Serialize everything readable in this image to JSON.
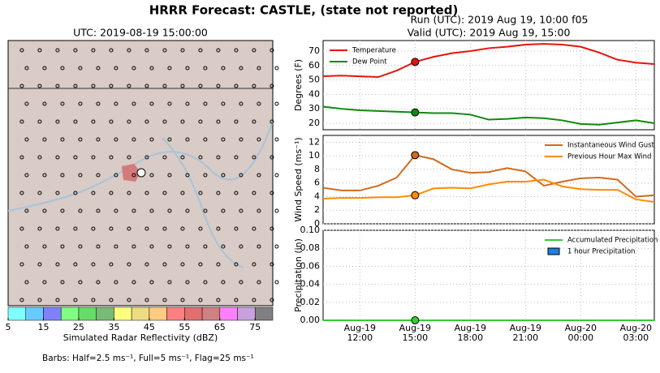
{
  "title": "HRRR Forecast: CASTLE, (state not reported)",
  "run": "Run (UTC): 2019 Aug 19, 10:00 f05",
  "valid": "Valid (UTC): 2019 Aug 19, 15:00",
  "footnote": "Barbs: Half=2.5 ms⁻¹, Full=5 ms⁻¹, Flag=25 ms⁻¹",
  "chart_data": [
    {
      "type": "colorbar",
      "title": "UTC: 2019-08-19 15:00:00",
      "label": "Simulated Radar Reflectivity (dBZ)",
      "colors": [
        "#80ffff",
        "#66ccff",
        "#8080ff",
        "#80ff80",
        "#66dd66",
        "#77bb77",
        "#ffff80",
        "#eedd80",
        "#ffcc80",
        "#ff8080",
        "#e07070",
        "#d08080",
        "#ff80ff",
        "#c8a0e0",
        "#808080"
      ],
      "xlim": [
        5,
        80
      ],
      "xticks": [
        5,
        15,
        25,
        35,
        45,
        55,
        65,
        75
      ]
    },
    {
      "type": "line",
      "ylabel": "Degrees (F)",
      "legend": "upper left",
      "grid": true,
      "x": [
        "08-19 10:00",
        "08-19 11:00",
        "08-19 12:00",
        "08-19 13:00",
        "08-19 14:00",
        "08-19 15:00",
        "08-19 16:00",
        "08-19 17:00",
        "08-19 18:00",
        "08-19 19:00",
        "08-19 20:00",
        "08-19 21:00",
        "08-19 22:00",
        "08-19 23:00",
        "08-20 00:00",
        "08-20 01:00",
        "08-20 02:00",
        "08-20 03:00",
        "08-20 04:00"
      ],
      "xlim": [
        "08-19 10:00",
        "08-20 04:00"
      ],
      "highlight_x": "08-19 15:00",
      "ylim": [
        15.5,
        77.3
      ],
      "yticks": [
        20,
        30,
        40,
        50,
        60,
        70
      ],
      "series": [
        {
          "name": "Temperature",
          "color": "#e8120c",
          "style": "line",
          "values": [
            52.6,
            53,
            52.5,
            52,
            56.5,
            62.5,
            66,
            68.5,
            70,
            72,
            73,
            74.5,
            75,
            74.5,
            73,
            69,
            64,
            62,
            61
          ]
        },
        {
          "name": "Dew Point",
          "color": "#0d8a0d",
          "style": "line",
          "values": [
            31.5,
            30,
            29,
            28.5,
            28,
            27.5,
            27,
            27,
            26,
            22.5,
            23,
            24,
            23.5,
            22,
            19.5,
            19,
            20.5,
            22,
            20
          ]
        }
      ]
    },
    {
      "type": "line",
      "ylabel": "Wind Speed (ms⁻¹)",
      "legend": "upper right",
      "grid": true,
      "x": [
        "08-19 10:00",
        "08-19 11:00",
        "08-19 12:00",
        "08-19 13:00",
        "08-19 14:00",
        "08-19 15:00",
        "08-19 16:00",
        "08-19 17:00",
        "08-19 18:00",
        "08-19 19:00",
        "08-19 20:00",
        "08-19 21:00",
        "08-19 22:00",
        "08-19 23:00",
        "08-20 00:00",
        "08-20 01:00",
        "08-20 02:00",
        "08-20 03:00",
        "08-20 04:00"
      ],
      "xlim": [
        "08-19 10:00",
        "08-20 04:00"
      ],
      "highlight_x": "08-19 15:00",
      "ylim": [
        0,
        13
      ],
      "yticks": [
        0,
        2,
        4,
        6,
        8,
        10,
        12
      ],
      "series": [
        {
          "name": "Instantaneous Wind Gust",
          "color": "#d2691e",
          "style": "line",
          "values": [
            5.3,
            4.9,
            4.9,
            5.6,
            6.8,
            10.1,
            9.5,
            8,
            7.5,
            7.6,
            8.2,
            7.7,
            5.6,
            6.2,
            6.7,
            6.8,
            6.5,
            4,
            4.2
          ]
        },
        {
          "name": "Previous Hour Max Wind",
          "color": "#ff8c00",
          "style": "line",
          "values": [
            3.7,
            3.8,
            3.8,
            3.9,
            3.9,
            4.2,
            5.2,
            5.3,
            5.2,
            5.8,
            6.2,
            6.2,
            6.5,
            5.5,
            5.1,
            5,
            5,
            3.6,
            3.2
          ]
        }
      ]
    },
    {
      "type": "line",
      "ylabel": "Precipitation (in)",
      "legend": "upper right",
      "grid": true,
      "x": [
        "08-19 10:00",
        "08-19 11:00",
        "08-19 12:00",
        "08-19 13:00",
        "08-19 14:00",
        "08-19 15:00",
        "08-19 16:00",
        "08-19 17:00",
        "08-19 18:00",
        "08-19 19:00",
        "08-19 20:00",
        "08-19 21:00",
        "08-19 22:00",
        "08-19 23:00",
        "08-20 00:00",
        "08-20 01:00",
        "08-20 02:00",
        "08-20 03:00",
        "08-20 04:00"
      ],
      "xlim": [
        "08-19 10:00",
        "08-20 04:00"
      ],
      "highlight_x": "08-19 15:00",
      "ylim": [
        0,
        0.1
      ],
      "yticks": [
        {
          "value": 0,
          "label": "0.00"
        },
        {
          "value": 0.02,
          "label": "0.02"
        },
        {
          "value": 0.04,
          "label": "0.04"
        },
        {
          "value": 0.06,
          "label": "0.06"
        },
        {
          "value": 0.08,
          "label": "0.08"
        },
        {
          "value": 0.1,
          "label": "0.10"
        }
      ],
      "xticks": [
        {
          "value": "08-19 12:00",
          "label": "Aug-19\n12:00"
        },
        {
          "value": "08-19 15:00",
          "label": "Aug-19\n15:00"
        },
        {
          "value": "08-19 18:00",
          "label": "Aug-19\n18:00"
        },
        {
          "value": "08-19 21:00",
          "label": "Aug-19\n21:00"
        },
        {
          "value": "08-20 00:00",
          "label": "Aug-20\n00:00"
        },
        {
          "value": "08-20 03:00",
          "label": "Aug-20\n03:00"
        }
      ],
      "series": [
        {
          "name": "Accumulated Precipitation",
          "color": "#32cd32",
          "style": "line",
          "values": [
            0,
            0,
            0,
            0,
            0,
            0,
            0,
            0,
            0,
            0,
            0,
            0,
            0,
            0,
            0,
            0,
            0,
            0,
            0
          ]
        },
        {
          "name": "1 hour Precipitation",
          "color": "#1e80e0",
          "style": "bar",
          "values": [
            0,
            0,
            0,
            0,
            0,
            0,
            0,
            0,
            0,
            0,
            0,
            0,
            0,
            0,
            0,
            0,
            0,
            0,
            0
          ]
        }
      ]
    }
  ]
}
